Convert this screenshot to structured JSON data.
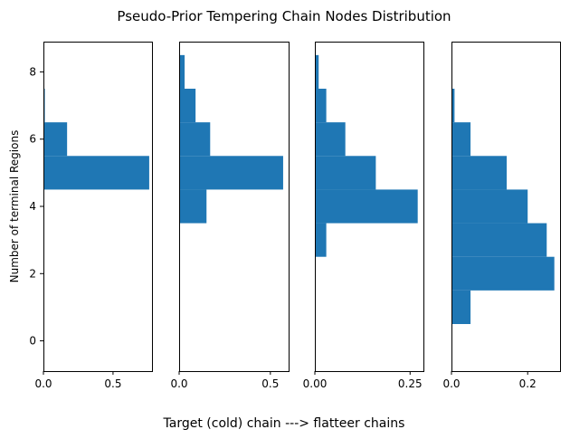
{
  "figure": {
    "title": "Pseudo-Prior Tempering Chain Nodes Distribution",
    "xlabel": "Target (cold) chain ---> flatteer chains",
    "ylabel": "Number of terminal Regions",
    "bar_color": "#1f77b4"
  },
  "chart_data": [
    {
      "type": "bar",
      "orientation": "horizontal",
      "categories": [
        5,
        6,
        7
      ],
      "values": [
        0.76,
        0.17,
        0.01
      ],
      "ylim": [
        -0.9,
        8.9
      ],
      "xlim": [
        0,
        0.78
      ],
      "yticks": [
        0,
        2,
        4,
        6,
        8
      ],
      "xticks": [
        0,
        0.5
      ],
      "xtick_labels": [
        "0.0",
        "0.5"
      ],
      "ytick_labels": [
        "0",
        "2",
        "4",
        "6",
        "8"
      ]
    },
    {
      "type": "bar",
      "orientation": "horizontal",
      "categories": [
        4,
        5,
        6,
        7,
        8
      ],
      "values": [
        0.15,
        0.57,
        0.17,
        0.09,
        0.03
      ],
      "ylim": [
        -0.9,
        8.9
      ],
      "xlim": [
        0,
        0.6
      ],
      "xticks": [
        0,
        0.5
      ],
      "xtick_labels": [
        "0.0",
        "0.5"
      ]
    },
    {
      "type": "bar",
      "orientation": "horizontal",
      "categories": [
        3,
        4,
        5,
        6,
        7,
        8
      ],
      "values": [
        0.03,
        0.27,
        0.16,
        0.08,
        0.03,
        0.01
      ],
      "ylim": [
        -0.9,
        8.9
      ],
      "xlim": [
        0,
        0.285
      ],
      "xticks": [
        0,
        0.25
      ],
      "xtick_labels": [
        "0.00",
        "0.25"
      ]
    },
    {
      "type": "bar",
      "orientation": "horizontal",
      "categories": [
        1,
        2,
        3,
        4,
        5,
        6,
        7
      ],
      "values": [
        0.05,
        0.27,
        0.25,
        0.2,
        0.145,
        0.05,
        0.008
      ],
      "ylim": [
        -0.9,
        8.9
      ],
      "xlim": [
        0,
        0.285
      ],
      "xticks": [
        0,
        0.2
      ],
      "xtick_labels": [
        "0.0",
        "0.2"
      ]
    }
  ]
}
